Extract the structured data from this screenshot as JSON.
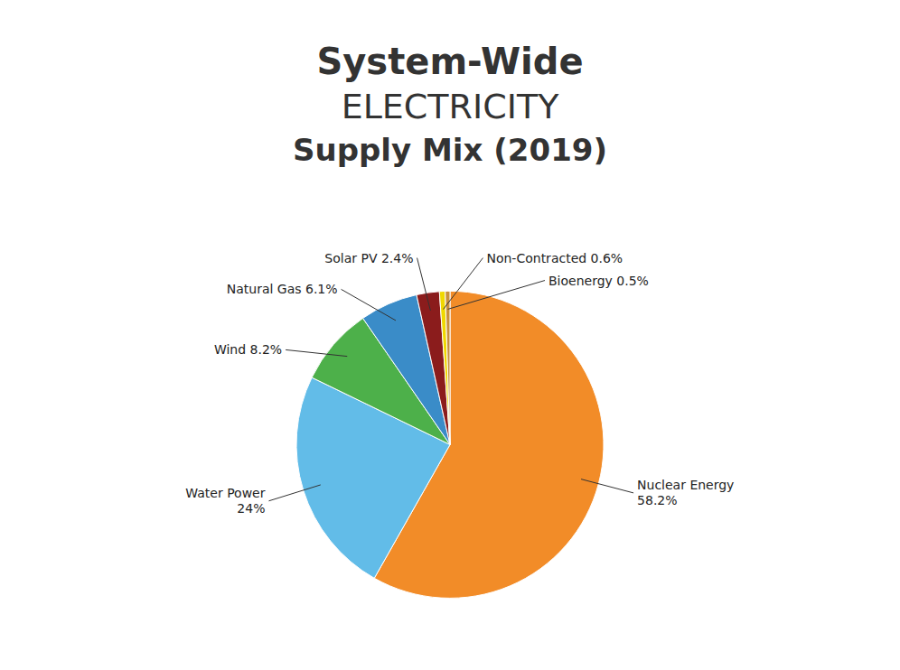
{
  "chart_data": {
    "type": "pie",
    "title": [
      "System-Wide",
      "ELECTRICITY",
      "Supply Mix (2019)"
    ],
    "categories": [
      "Nuclear Energy\n58.2%",
      "Water Power\n24%",
      "Wind 8.2%",
      "Natural Gas 6.1%",
      "Solar PV 2.4%",
      "Non-Contracted 0.6%",
      "Bioenergy 0.5%"
    ],
    "values": [
      58.2,
      24.0,
      8.2,
      6.1,
      2.4,
      0.6,
      0.5
    ],
    "colors": [
      "#f28c28",
      "#62bce8",
      "#4db04a",
      "#3a8cc8",
      "#8b1c1c",
      "#f0d800",
      "#c8903c"
    ]
  }
}
